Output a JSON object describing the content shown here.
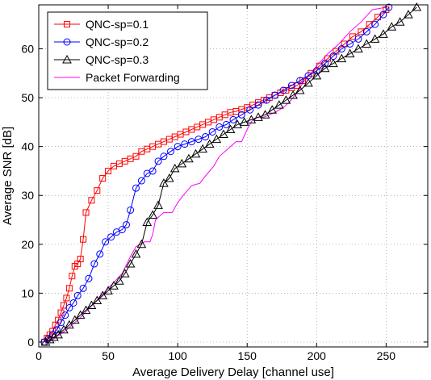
{
  "chart_data": {
    "type": "line",
    "title": "",
    "xlabel": "Average Delivery Delay [channel use]",
    "ylabel": "Average SNR [dB]",
    "xlim": [
      0,
      280
    ],
    "ylim": [
      -1,
      69
    ],
    "xticks": [
      0,
      50,
      100,
      150,
      200,
      250
    ],
    "yticks": [
      0,
      10,
      20,
      30,
      40,
      50,
      60
    ],
    "grid": true,
    "grid_style": "dotted",
    "legend_position": "top-left",
    "series": [
      {
        "name": "QNC-sp=0.1",
        "color": "#ff0000",
        "marker": "square",
        "x": [
          4,
          6,
          8,
          10,
          12,
          14,
          16,
          18,
          20,
          22,
          24,
          26,
          28,
          30,
          32,
          34,
          38,
          42,
          46,
          50,
          54,
          58,
          62,
          66,
          70,
          74,
          78,
          82,
          86,
          90,
          94,
          98,
          102,
          106,
          110,
          114,
          118,
          122,
          126,
          130,
          134,
          138,
          142,
          146,
          150,
          154,
          158,
          162,
          166,
          170,
          174,
          178,
          182,
          186,
          190,
          196,
          202,
          208,
          214,
          220,
          226,
          232,
          238,
          244,
          250
        ],
        "y": [
          0,
          0.8,
          1.5,
          2.2,
          3.5,
          4.5,
          6.0,
          7.5,
          9.0,
          11.0,
          13.5,
          15.5,
          16.0,
          17.0,
          21.0,
          26.5,
          29.0,
          31.0,
          33.5,
          35.0,
          36.0,
          36.5,
          37.0,
          37.5,
          38.0,
          39.0,
          39.5,
          40.0,
          40.5,
          41.0,
          41.5,
          42.0,
          42.5,
          43.0,
          43.5,
          44.0,
          44.5,
          45.0,
          45.5,
          46.0,
          46.5,
          47.0,
          47.2,
          47.6,
          48.0,
          48.5,
          49.0,
          49.5,
          50.0,
          50.5,
          51.0,
          51.5,
          52.0,
          52.5,
          53.5,
          55.0,
          56.5,
          58.0,
          59.5,
          61.0,
          62.5,
          63.5,
          65.0,
          66.5,
          68.0
        ]
      },
      {
        "name": "QNC-sp=0.2",
        "color": "#0000ff",
        "marker": "circle",
        "x": [
          4,
          7,
          10,
          13,
          16,
          19,
          22,
          25,
          28,
          32,
          36,
          40,
          44,
          48,
          52,
          56,
          60,
          63,
          66,
          70,
          74,
          78,
          82,
          86,
          90,
          95,
          100,
          105,
          110,
          115,
          120,
          125,
          130,
          135,
          140,
          146,
          152,
          158,
          164,
          170,
          176,
          182,
          188,
          194,
          200,
          206,
          212,
          218,
          224,
          230,
          236,
          242,
          248,
          252
        ],
        "y": [
          0,
          0.7,
          1.5,
          2.5,
          4.0,
          5.5,
          7.0,
          8.0,
          9.5,
          11.0,
          13.0,
          16.0,
          18.0,
          20.5,
          21.5,
          22.5,
          23.0,
          24.0,
          27.0,
          31.5,
          33.0,
          34.5,
          35.0,
          37.0,
          38.0,
          39.0,
          40.0,
          40.5,
          41.0,
          41.5,
          42.0,
          43.0,
          44.0,
          44.5,
          45.5,
          46.5,
          47.5,
          48.5,
          49.5,
          50.5,
          51.5,
          52.5,
          53.5,
          54.5,
          55.5,
          57.0,
          58.5,
          60.0,
          61.0,
          62.0,
          63.5,
          65.0,
          67.0,
          68.5
        ]
      },
      {
        "name": "QNC-sp=0.3",
        "color": "#000000",
        "marker": "triangle",
        "x": [
          5,
          8,
          11,
          14,
          18,
          22,
          26,
          30,
          34,
          38,
          42,
          46,
          50,
          54,
          58,
          62,
          66,
          70,
          74,
          78,
          82,
          86,
          90,
          94,
          98,
          103,
          108,
          113,
          118,
          123,
          128,
          133,
          138,
          143,
          148,
          153,
          158,
          163,
          168,
          173,
          178,
          183,
          188,
          194,
          200,
          206,
          212,
          218,
          224,
          230,
          236,
          242,
          248,
          254,
          260,
          266,
          272
        ],
        "y": [
          0,
          0.5,
          1.0,
          1.5,
          2.5,
          3.5,
          4.5,
          5.5,
          6.5,
          7.5,
          8.5,
          9.5,
          10.5,
          11.5,
          12.5,
          14.0,
          16.0,
          18.0,
          20.0,
          24.5,
          26.0,
          28.0,
          32.5,
          33.5,
          35.5,
          36.5,
          37.5,
          38.5,
          39.5,
          40.5,
          41.5,
          42.5,
          43.5,
          44.5,
          45.0,
          45.5,
          46.0,
          46.5,
          47.5,
          48.5,
          49.5,
          50.5,
          51.5,
          53.0,
          54.5,
          56.0,
          57.0,
          58.0,
          59.0,
          60.0,
          61.0,
          62.0,
          63.0,
          64.5,
          65.5,
          67.0,
          68.5
        ]
      },
      {
        "name": "Packet Forwarding",
        "color": "#ff00ff",
        "marker": "none",
        "x": [
          4,
          10,
          20,
          30,
          40,
          50,
          60,
          66,
          70,
          76,
          80,
          82,
          84,
          90,
          96,
          100,
          104,
          110,
          116,
          120,
          126,
          130,
          136,
          142,
          146,
          150,
          154,
          158,
          162,
          166,
          170,
          176,
          180,
          186,
          190,
          196,
          200,
          208,
          216,
          224,
          232,
          240,
          250
        ],
        "y": [
          0,
          0.5,
          2.5,
          5.0,
          8.0,
          11.0,
          14.0,
          17.5,
          19.5,
          20.5,
          20.5,
          22.0,
          25.0,
          26.5,
          26.5,
          28.5,
          30.0,
          32.0,
          32.5,
          34.0,
          36.0,
          38.0,
          39.5,
          41.0,
          41.0,
          43.5,
          45.5,
          46.0,
          46.0,
          46.5,
          47.0,
          48.0,
          49.0,
          51.0,
          53.0,
          55.0,
          56.5,
          59.0,
          61.0,
          63.5,
          65.5,
          68.0,
          68.5
        ]
      }
    ]
  }
}
